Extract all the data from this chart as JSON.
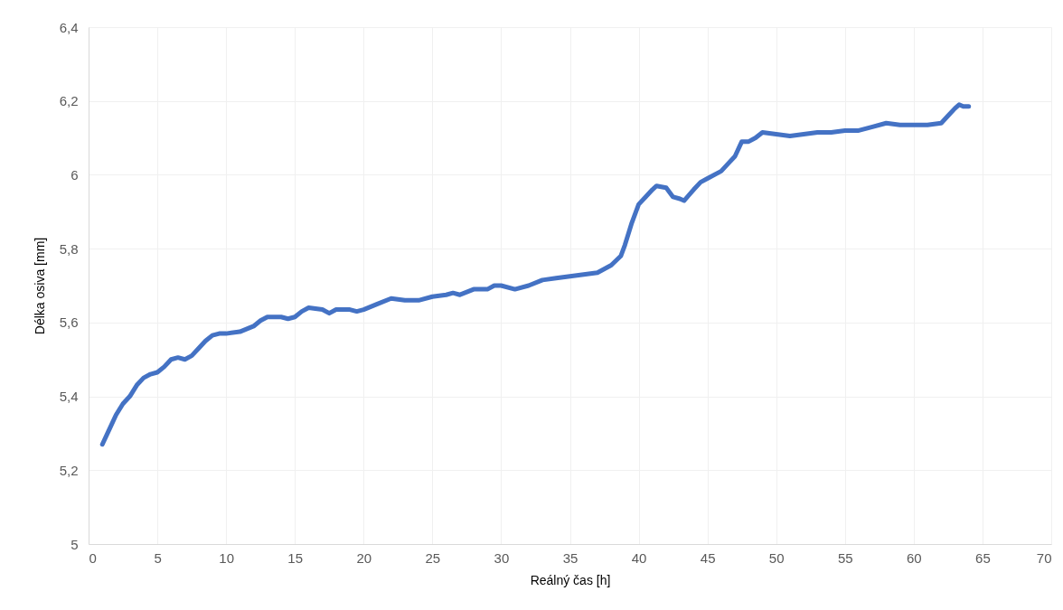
{
  "chart_data": {
    "type": "line",
    "xlabel": "Reálný čas [h]",
    "ylabel": "Délka osiva [mm]",
    "x": [
      1,
      1.5,
      2,
      2.5,
      3,
      3.5,
      4,
      4.5,
      5,
      5.5,
      6,
      6.5,
      7,
      7.5,
      8,
      8.5,
      9,
      9.5,
      10,
      11,
      12,
      12.5,
      13,
      14,
      14.5,
      15,
      15.5,
      16,
      17,
      17.5,
      18,
      19,
      19.5,
      20,
      21,
      22,
      23,
      24,
      25,
      26,
      26.5,
      27,
      28,
      29,
      29.5,
      30,
      31,
      32,
      33,
      34,
      35,
      36,
      37,
      38,
      38.7,
      39,
      39.5,
      40,
      40.5,
      41,
      41.3,
      42,
      42.5,
      43,
      43.3,
      44,
      44.5,
      45,
      46,
      46.5,
      47,
      47.5,
      48,
      48.5,
      49,
      50,
      51,
      52,
      53,
      54,
      55,
      56,
      57,
      58,
      59,
      60,
      61,
      62,
      62.5,
      63,
      63.3,
      63.6,
      64
    ],
    "series": [
      {
        "color": "#4472c4",
        "values": [
          5.27,
          5.31,
          5.35,
          5.38,
          5.4,
          5.43,
          5.45,
          5.46,
          5.465,
          5.48,
          5.5,
          5.505,
          5.5,
          5.51,
          5.53,
          5.55,
          5.565,
          5.57,
          5.57,
          5.575,
          5.59,
          5.605,
          5.615,
          5.615,
          5.61,
          5.615,
          5.63,
          5.64,
          5.635,
          5.625,
          5.635,
          5.635,
          5.63,
          5.635,
          5.65,
          5.665,
          5.66,
          5.66,
          5.67,
          5.675,
          5.68,
          5.675,
          5.69,
          5.69,
          5.7,
          5.7,
          5.69,
          5.7,
          5.715,
          5.72,
          5.725,
          5.73,
          5.735,
          5.755,
          5.78,
          5.81,
          5.87,
          5.92,
          5.94,
          5.96,
          5.97,
          5.965,
          5.94,
          5.935,
          5.93,
          5.96,
          5.98,
          5.99,
          6.01,
          6.03,
          6.05,
          6.09,
          6.09,
          6.1,
          6.115,
          6.11,
          6.105,
          6.11,
          6.115,
          6.115,
          6.12,
          6.12,
          6.13,
          6.14,
          6.135,
          6.135,
          6.135,
          6.14,
          6.16,
          6.18,
          6.19,
          6.185,
          6.185
        ]
      }
    ],
    "xlim": [
      0,
      70
    ],
    "xticks": [
      0,
      5,
      10,
      15,
      20,
      25,
      30,
      35,
      40,
      45,
      50,
      55,
      60,
      65,
      70
    ],
    "ylim": [
      5,
      6.4
    ],
    "yticks": [
      5,
      {
        "value": 5.2,
        "label": "5,2"
      },
      {
        "value": 5.4,
        "label": "5,4"
      },
      {
        "value": 5.6,
        "label": "5,6"
      },
      {
        "value": 5.8,
        "label": "5,8"
      },
      6,
      {
        "value": 6.2,
        "label": "6,2"
      },
      {
        "value": 6.4,
        "label": "6,4"
      }
    ],
    "grid": true
  }
}
